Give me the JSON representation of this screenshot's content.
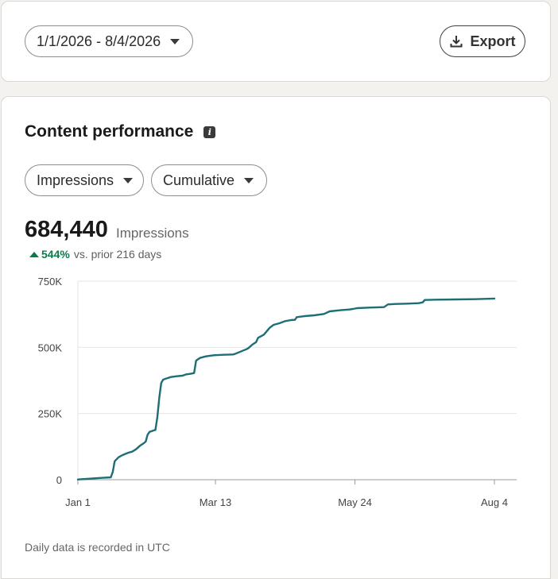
{
  "date_filter": {
    "label": "1/1/2026 - 8/4/2026"
  },
  "export": {
    "label": "Export"
  },
  "section": {
    "title": "Content performance"
  },
  "filters": {
    "metric": "Impressions",
    "mode": "Cumulative"
  },
  "summary": {
    "value": "684,440",
    "unit": "Impressions",
    "delta": "544%",
    "delta_text": "vs. prior 216 days"
  },
  "footer_note": "Daily data is recorded in UTC",
  "colors": {
    "line": "#1d6e75",
    "delta": "#0b7a4b",
    "grid": "#e6e6e6"
  },
  "chart_data": {
    "type": "line",
    "title": "",
    "xlabel": "",
    "ylabel": "",
    "x_ticks": [
      {
        "day": 0,
        "label": "Jan 1"
      },
      {
        "day": 71,
        "label": "Mar 13"
      },
      {
        "day": 143,
        "label": "May 24"
      },
      {
        "day": 215,
        "label": "Aug 4"
      }
    ],
    "y_ticks": [
      {
        "value": 0,
        "label": "0"
      },
      {
        "value": 250000,
        "label": "250K"
      },
      {
        "value": 500000,
        "label": "500K"
      },
      {
        "value": 750000,
        "label": "750K"
      }
    ],
    "xlim": [
      0,
      215
    ],
    "ylim": [
      0,
      750000
    ],
    "grid": true,
    "series": [
      {
        "name": "",
        "points": [
          [
            0,
            1000
          ],
          [
            6,
            4000
          ],
          [
            12,
            7000
          ],
          [
            17,
            9000
          ],
          [
            18,
            30000
          ],
          [
            19,
            70000
          ],
          [
            21,
            85000
          ],
          [
            23,
            93000
          ],
          [
            26,
            102000
          ],
          [
            28,
            106000
          ],
          [
            30,
            115000
          ],
          [
            32,
            128000
          ],
          [
            34,
            138000
          ],
          [
            35,
            144000
          ],
          [
            36,
            170000
          ],
          [
            37,
            181000
          ],
          [
            39,
            186000
          ],
          [
            40,
            188000
          ],
          [
            41,
            235000
          ],
          [
            42,
            310000
          ],
          [
            43,
            365000
          ],
          [
            44,
            378000
          ],
          [
            46,
            383000
          ],
          [
            48,
            388000
          ],
          [
            51,
            391000
          ],
          [
            54,
            393000
          ],
          [
            56,
            398000
          ],
          [
            58,
            400000
          ],
          [
            60,
            403000
          ],
          [
            61,
            450000
          ],
          [
            63,
            460000
          ],
          [
            66,
            466000
          ],
          [
            70,
            470000
          ],
          [
            75,
            472000
          ],
          [
            80,
            473000
          ],
          [
            81,
            475000
          ],
          [
            84,
            484000
          ],
          [
            87,
            493000
          ],
          [
            88,
            497000
          ],
          [
            90,
            510000
          ],
          [
            92,
            520000
          ],
          [
            93,
            536000
          ],
          [
            96,
            548000
          ],
          [
            99,
            574000
          ],
          [
            101,
            585000
          ],
          [
            104,
            591000
          ],
          [
            107,
            599000
          ],
          [
            110,
            603000
          ],
          [
            112,
            604000
          ],
          [
            113,
            614000
          ],
          [
            117,
            618000
          ],
          [
            122,
            621000
          ],
          [
            127,
            626000
          ],
          [
            130,
            636000
          ],
          [
            135,
            640000
          ],
          [
            140,
            643000
          ],
          [
            142,
            645000
          ],
          [
            144,
            648000
          ],
          [
            150,
            650000
          ],
          [
            158,
            652000
          ],
          [
            160,
            662000
          ],
          [
            164,
            664000
          ],
          [
            170,
            665000
          ],
          [
            176,
            667000
          ],
          [
            178,
            670000
          ],
          [
            179,
            679000
          ],
          [
            185,
            680000
          ],
          [
            195,
            681000
          ],
          [
            205,
            682000
          ],
          [
            215,
            684440
          ]
        ]
      }
    ]
  }
}
